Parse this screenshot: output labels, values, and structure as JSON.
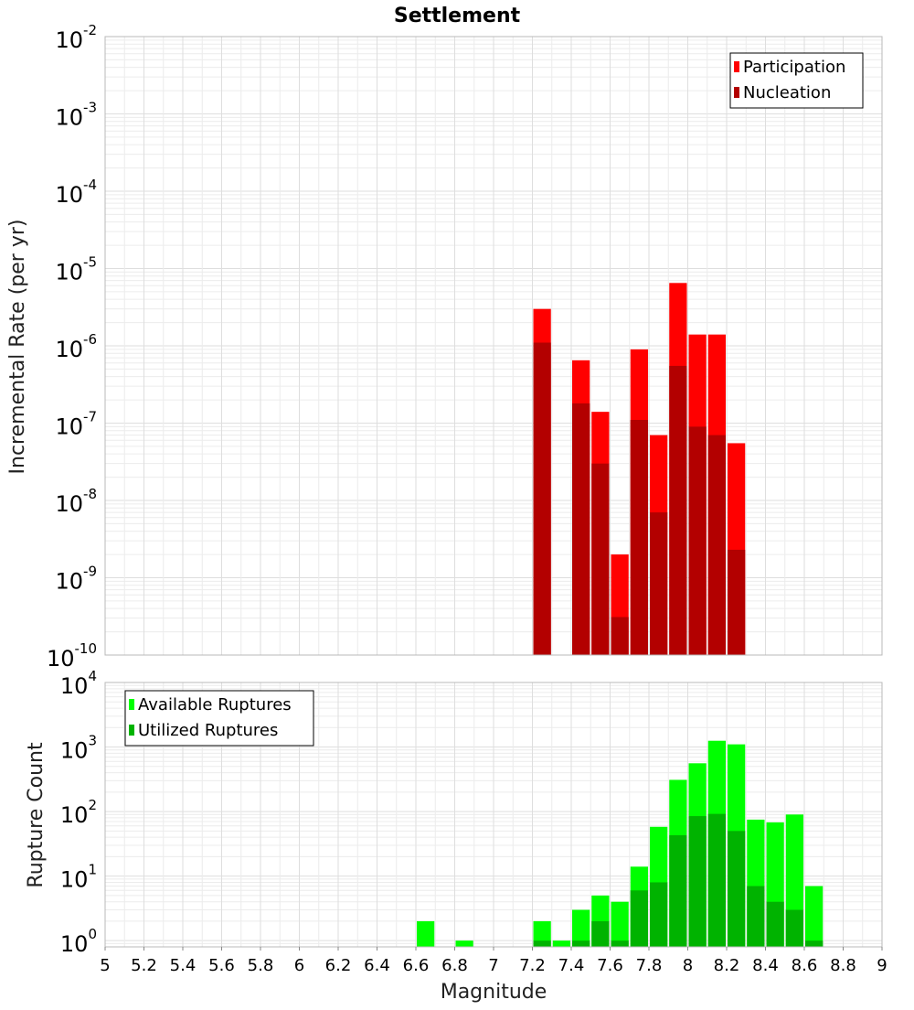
{
  "chart_data": [
    {
      "type": "bar",
      "title": "Settlement",
      "xlabel": "",
      "ylabel": "Incremental Rate (per yr)",
      "yscale": "log",
      "xlim": [
        5,
        9
      ],
      "ylim": [
        1e-10,
        0.01
      ],
      "y_tick_exponents": [
        "-10",
        "-9",
        "-8",
        "-7",
        "-6",
        "-5",
        "-4",
        "-3",
        "-2"
      ],
      "legend": {
        "position": "top-right",
        "entries": [
          "Participation",
          "Nucleation"
        ]
      },
      "bar_width": 0.1,
      "series": [
        {
          "name": "Participation",
          "color": "#ff0000",
          "points": [
            {
              "x": 7.25,
              "y": 3e-06
            },
            {
              "x": 7.45,
              "y": 6.5e-07
            },
            {
              "x": 7.55,
              "y": 1.4e-07
            },
            {
              "x": 7.65,
              "y": 2e-09
            },
            {
              "x": 7.75,
              "y": 9e-07
            },
            {
              "x": 7.85,
              "y": 7e-08
            },
            {
              "x": 7.95,
              "y": 6.5e-06
            },
            {
              "x": 8.05,
              "y": 1.4e-06
            },
            {
              "x": 8.15,
              "y": 1.4e-06
            },
            {
              "x": 8.25,
              "y": 5.5e-08
            }
          ]
        },
        {
          "name": "Nucleation",
          "color": "#b30000",
          "points": [
            {
              "x": 7.25,
              "y": 1.1e-06
            },
            {
              "x": 7.45,
              "y": 1.8e-07
            },
            {
              "x": 7.55,
              "y": 3e-08
            },
            {
              "x": 7.65,
              "y": 3.1e-10
            },
            {
              "x": 7.75,
              "y": 1.1e-07
            },
            {
              "x": 7.85,
              "y": 7e-09
            },
            {
              "x": 7.95,
              "y": 5.5e-07
            },
            {
              "x": 8.05,
              "y": 9e-08
            },
            {
              "x": 8.15,
              "y": 7e-08
            },
            {
              "x": 8.25,
              "y": 2.3e-09
            }
          ]
        }
      ]
    },
    {
      "type": "bar",
      "title": "",
      "xlabel": "Magnitude",
      "ylabel": "Rupture Count",
      "yscale": "log",
      "xlim": [
        5,
        9
      ],
      "ylim": [
        0.8,
        10000
      ],
      "x_ticks": [
        "5",
        "5.2",
        "5.4",
        "5.6",
        "5.8",
        "6",
        "6.2",
        "6.4",
        "6.6",
        "6.8",
        "7",
        "7.2",
        "7.4",
        "7.6",
        "7.8",
        "8",
        "8.2",
        "8.4",
        "8.6",
        "8.8",
        "9"
      ],
      "y_tick_exponents": [
        "0",
        "1",
        "2",
        "3",
        "4"
      ],
      "legend": {
        "position": "top-left",
        "entries": [
          "Available Ruptures",
          "Utilized Ruptures"
        ]
      },
      "bar_width": 0.1,
      "series": [
        {
          "name": "Available Ruptures",
          "color": "#00ff00",
          "points": [
            {
              "x": 6.65,
              "y": 2
            },
            {
              "x": 6.85,
              "y": 1
            },
            {
              "x": 7.25,
              "y": 2
            },
            {
              "x": 7.35,
              "y": 1
            },
            {
              "x": 7.45,
              "y": 3
            },
            {
              "x": 7.55,
              "y": 5
            },
            {
              "x": 7.65,
              "y": 4
            },
            {
              "x": 7.75,
              "y": 14
            },
            {
              "x": 7.85,
              "y": 58
            },
            {
              "x": 7.95,
              "y": 310
            },
            {
              "x": 8.05,
              "y": 560
            },
            {
              "x": 8.15,
              "y": 1250
            },
            {
              "x": 8.25,
              "y": 1100
            },
            {
              "x": 8.35,
              "y": 75
            },
            {
              "x": 8.45,
              "y": 68
            },
            {
              "x": 8.55,
              "y": 90
            },
            {
              "x": 8.65,
              "y": 7
            }
          ]
        },
        {
          "name": "Utilized Ruptures",
          "color": "#00b300",
          "points": [
            {
              "x": 7.25,
              "y": 1
            },
            {
              "x": 7.45,
              "y": 1
            },
            {
              "x": 7.55,
              "y": 2
            },
            {
              "x": 7.65,
              "y": 1
            },
            {
              "x": 7.75,
              "y": 6
            },
            {
              "x": 7.85,
              "y": 8
            },
            {
              "x": 7.95,
              "y": 43
            },
            {
              "x": 8.05,
              "y": 85
            },
            {
              "x": 8.15,
              "y": 92
            },
            {
              "x": 8.25,
              "y": 50
            },
            {
              "x": 8.35,
              "y": 7
            },
            {
              "x": 8.45,
              "y": 4
            },
            {
              "x": 8.55,
              "y": 3
            },
            {
              "x": 8.65,
              "y": 1
            }
          ]
        }
      ]
    }
  ]
}
